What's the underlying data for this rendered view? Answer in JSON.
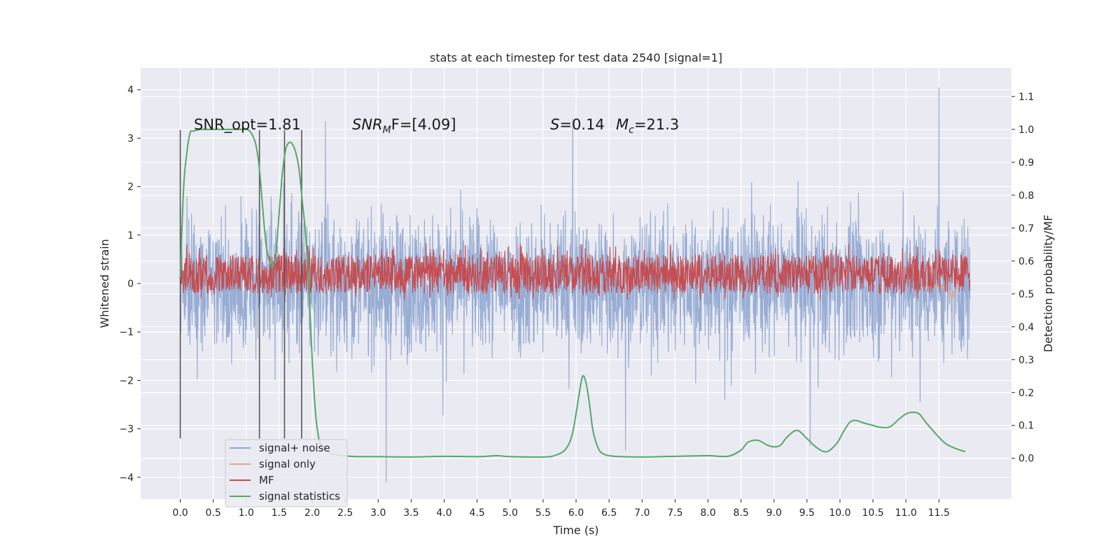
{
  "chart_data": {
    "type": "line",
    "title": "stats at each timestep for test data 2540 [signal=1]",
    "xlabel": "Time (s)",
    "ylabel": "Whitened strain",
    "y2label": "Detection probability/MF",
    "xlim": [
      -0.6,
      12.6
    ],
    "ylim": [
      -4.45,
      4.45
    ],
    "y2lim": [
      -0.124,
      1.187
    ],
    "x_ticks": [
      "0.0",
      "0.5",
      "1.0",
      "1.5",
      "2.0",
      "2.5",
      "3.0",
      "3.5",
      "4.0",
      "4.5",
      "5.0",
      "5.5",
      "6.0",
      "6.5",
      "7.0",
      "7.5",
      "8.0",
      "8.5",
      "9.0",
      "9.5",
      "10.0",
      "10.5",
      "11.0",
      "11.5"
    ],
    "y_ticks": [
      "4",
      "3",
      "2",
      "1",
      "0",
      "−1",
      "−2",
      "−3",
      "−4"
    ],
    "y2_ticks": [
      "1.1",
      "1.0",
      "0.9",
      "0.8",
      "0.7",
      "0.6",
      "0.5",
      "0.4",
      "0.3",
      "0.2",
      "0.1",
      "0.0"
    ],
    "grid": true,
    "legend_position": "lower-left",
    "annotations": {
      "snr_opt": "SNR_opt=1.81",
      "snr_mf_sym": "SNR",
      "snr_mf_sub": "M",
      "snr_mf_rest": "F=[4.09]",
      "s_sym": "S",
      "s_rest": "=0.14",
      "mc_sym": "M",
      "mc_sub": "c",
      "mc_rest": "=21.3"
    },
    "vlines_x": [
      0.0,
      1.2,
      1.58,
      1.84
    ],
    "series": [
      {
        "name": "signal+ noise",
        "color": "#8fa6d0",
        "axis": "left",
        "envelope_x": [
          0.0,
          11.97
        ],
        "typical_range": [
          -2.0,
          2.0
        ],
        "peaks": [
          {
            "x": 11.5,
            "y": 4.05
          },
          {
            "x": 5.95,
            "y": 3.4
          },
          {
            "x": 2.2,
            "y": 3.35
          },
          {
            "x": 3.12,
            "y": -4.1
          },
          {
            "x": 6.75,
            "y": -3.45
          },
          {
            "x": 9.55,
            "y": -3.35
          }
        ]
      },
      {
        "name": "signal only",
        "color": "#e8a88a",
        "axis": "left",
        "x": [
          11.3,
          11.4,
          11.5,
          11.6,
          11.65,
          11.7,
          11.72
        ],
        "y": [
          0.0,
          -0.03,
          -0.06,
          -0.1,
          -0.18,
          -0.3,
          -0.15
        ]
      },
      {
        "name": "MF",
        "color": "#c44e52",
        "axis": "right",
        "envelope_x": [
          0.0,
          11.97
        ],
        "typical_range": [
          0.5,
          0.62
        ]
      },
      {
        "name": "signal statistics",
        "color": "#55a868",
        "axis": "right",
        "x": [
          0.0,
          0.05,
          0.1,
          0.15,
          0.2,
          0.3,
          0.4,
          0.6,
          0.8,
          1.0,
          1.05,
          1.1,
          1.15,
          1.2,
          1.25,
          1.3,
          1.35,
          1.4,
          1.45,
          1.5,
          1.55,
          1.6,
          1.65,
          1.7,
          1.75,
          1.8,
          1.85,
          1.9,
          1.95,
          2.0,
          2.05,
          2.1,
          2.15,
          2.2,
          2.25,
          2.3,
          2.4,
          2.5,
          2.7,
          3.0,
          3.5,
          4.0,
          4.5,
          4.8,
          5.0,
          5.5,
          5.7,
          5.85,
          5.95,
          6.05,
          6.1,
          6.15,
          6.2,
          6.25,
          6.3,
          6.35,
          6.4,
          6.5,
          6.7,
          7.0,
          7.5,
          8.0,
          8.3,
          8.5,
          8.6,
          8.75,
          8.9,
          9.0,
          9.1,
          9.2,
          9.35,
          9.5,
          9.65,
          9.8,
          9.95,
          10.05,
          10.15,
          10.25,
          10.35,
          10.5,
          10.6,
          10.75,
          10.9,
          11.0,
          11.1,
          11.2,
          11.3,
          11.45,
          11.6,
          11.75,
          11.9
        ],
        "y": [
          0.55,
          0.82,
          0.93,
          0.99,
          0.995,
          1.0,
          1.0,
          1.0,
          1.0,
          1.0,
          0.995,
          0.98,
          0.95,
          0.88,
          0.76,
          0.65,
          0.6,
          0.58,
          0.62,
          0.75,
          0.87,
          0.94,
          0.96,
          0.955,
          0.93,
          0.88,
          0.78,
          0.68,
          0.52,
          0.3,
          0.14,
          0.06,
          0.035,
          0.025,
          0.02,
          0.015,
          0.01,
          0.007,
          0.005,
          0.005,
          0.004,
          0.006,
          0.005,
          0.008,
          0.005,
          0.004,
          0.01,
          0.03,
          0.08,
          0.2,
          0.25,
          0.23,
          0.17,
          0.09,
          0.05,
          0.025,
          0.015,
          0.008,
          0.005,
          0.004,
          0.006,
          0.008,
          0.006,
          0.025,
          0.048,
          0.055,
          0.04,
          0.035,
          0.04,
          0.065,
          0.085,
          0.06,
          0.032,
          0.02,
          0.045,
          0.08,
          0.11,
          0.115,
          0.108,
          0.1,
          0.095,
          0.095,
          0.12,
          0.135,
          0.14,
          0.135,
          0.11,
          0.075,
          0.045,
          0.03,
          0.02
        ]
      }
    ]
  }
}
